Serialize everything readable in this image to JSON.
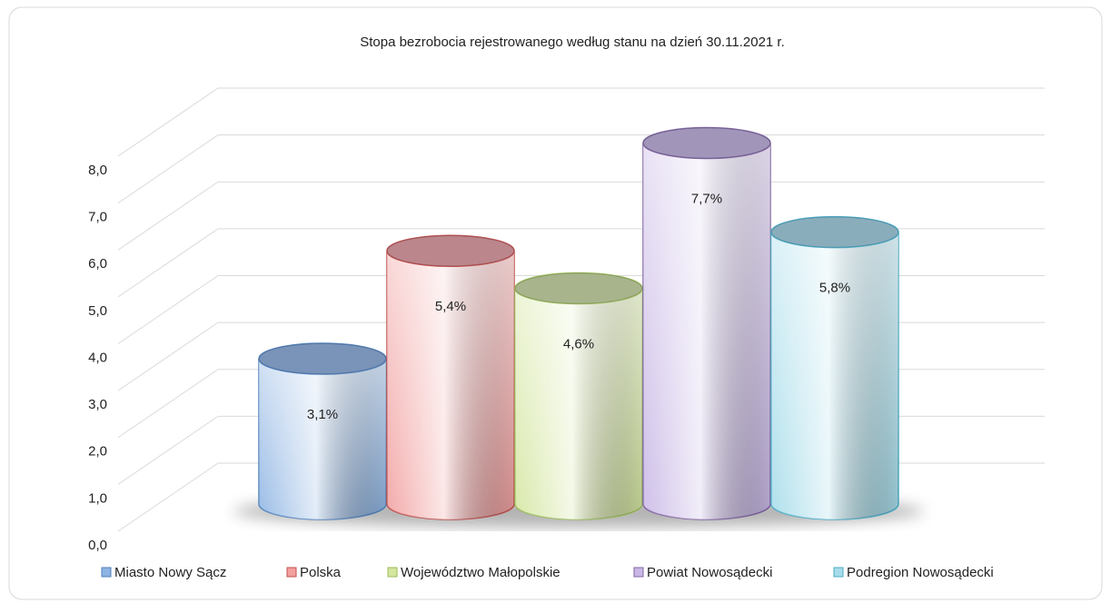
{
  "chart_data": {
    "type": "cylinder",
    "title": "Stopa bezrobocia rejestrowanego według stanu na dzień 30.11.2021 r.",
    "ylim": [
      0,
      8
    ],
    "yticks": [
      {
        "value": 0,
        "label": "0,0"
      },
      {
        "value": 1,
        "label": "1,0"
      },
      {
        "value": 2,
        "label": "2,0"
      },
      {
        "value": 3,
        "label": "3,0"
      },
      {
        "value": 4,
        "label": "4,0"
      },
      {
        "value": 5,
        "label": "5,0"
      },
      {
        "value": 6,
        "label": "6,0"
      },
      {
        "value": 7,
        "label": "7,0"
      },
      {
        "value": 8,
        "label": "8,0"
      }
    ],
    "grid": true,
    "legend": "bottom",
    "series": [
      {
        "name": "Miasto Nowy Sącz",
        "color": "#8eb4e3",
        "border": "#4f81bd",
        "values": [
          3.1
        ],
        "value_labels": [
          "3,1%"
        ]
      },
      {
        "name": "Polska",
        "color": "#f2a0a0",
        "border": "#c0504d",
        "values": [
          5.4
        ],
        "value_labels": [
          "5,4%"
        ]
      },
      {
        "name": "Województwo Małopolskie",
        "color": "#d4e6a0",
        "border": "#9bbb59",
        "values": [
          4.6
        ],
        "value_labels": [
          "4,6%"
        ]
      },
      {
        "name": "Powiat Nowosądecki",
        "color": "#c9b8e6",
        "border": "#8064a2",
        "values": [
          7.7
        ],
        "value_labels": [
          "7,7%"
        ]
      },
      {
        "name": "Podregion Nowosądecki",
        "color": "#a6dcea",
        "border": "#4bacc6",
        "values": [
          5.8
        ],
        "value_labels": [
          "5,8%"
        ]
      }
    ]
  }
}
